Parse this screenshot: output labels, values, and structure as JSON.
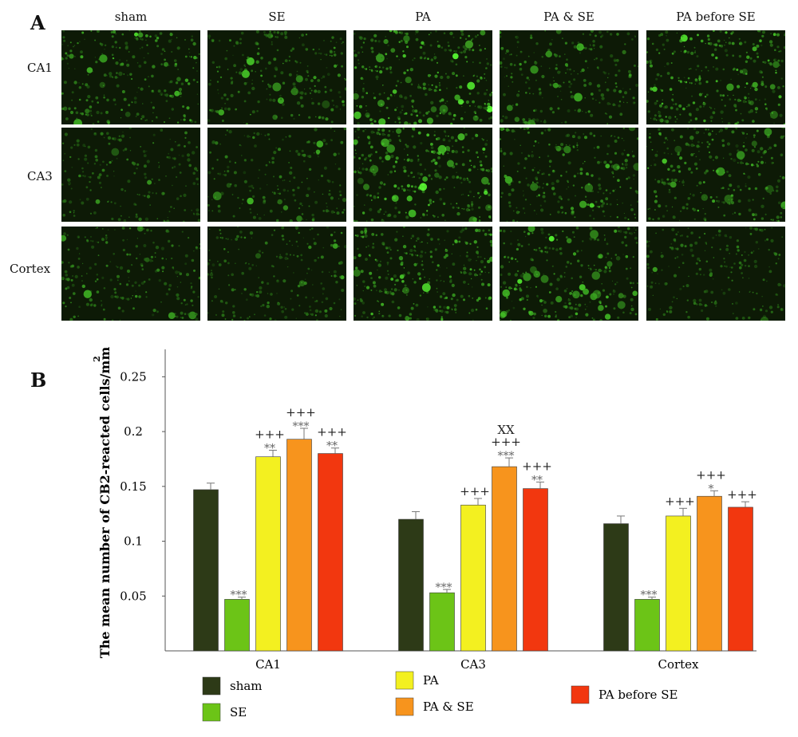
{
  "panel_a": {
    "letter": "A",
    "columns": [
      "sham",
      "SE",
      "PA",
      "PA & SE",
      "PA before SE"
    ],
    "rows": [
      "CA1",
      "CA3",
      "Cortex"
    ]
  },
  "panel_b": {
    "letter": "B",
    "chart_data": {
      "type": "bar",
      "title": "",
      "ylabel": "The mean number of CB2-reacted cells/mm",
      "ylabel_superscript": "2",
      "xlabel": "",
      "ylim": [
        0,
        0.275
      ],
      "yticks": [
        "0.05",
        "0.1",
        "0.15",
        "0.2",
        "0.25"
      ],
      "ytick_values": [
        0.05,
        0.1,
        0.15,
        0.2,
        0.25
      ],
      "categories": [
        "CA1",
        "CA3",
        "Cortex"
      ],
      "series": [
        {
          "name": "sham",
          "color": "#2d3a17",
          "values": [
            0.147,
            0.12,
            0.116
          ],
          "errors": [
            0.006,
            0.007,
            0.007
          ]
        },
        {
          "name": "SE",
          "color": "#6cc417",
          "values": [
            0.047,
            0.053,
            0.047
          ],
          "errors": [
            0.002,
            0.003,
            0.002
          ]
        },
        {
          "name": "PA",
          "color": "#f3f020",
          "values": [
            0.177,
            0.133,
            0.123
          ],
          "errors": [
            0.006,
            0.006,
            0.007
          ]
        },
        {
          "name": "PA & SE",
          "color": "#f7941d",
          "values": [
            0.193,
            0.168,
            0.141
          ],
          "errors": [
            0.01,
            0.008,
            0.005
          ]
        },
        {
          "name": "PA before SE",
          "color": "#f2370f",
          "values": [
            0.18,
            0.148,
            0.131
          ],
          "errors": [
            0.005,
            0.006,
            0.005
          ]
        }
      ],
      "annotations": [
        {
          "series": 1,
          "category": 0,
          "lines": [
            "***"
          ]
        },
        {
          "series": 2,
          "category": 0,
          "lines": [
            "+++",
            "**"
          ]
        },
        {
          "series": 3,
          "category": 0,
          "lines": [
            "+++",
            "***"
          ]
        },
        {
          "series": 4,
          "category": 0,
          "lines": [
            "+++",
            "**"
          ]
        },
        {
          "series": 1,
          "category": 1,
          "lines": [
            "***"
          ]
        },
        {
          "series": 2,
          "category": 1,
          "lines": [
            "+++"
          ]
        },
        {
          "series": 3,
          "category": 1,
          "lines": [
            "XX",
            "+++",
            "***"
          ]
        },
        {
          "series": 4,
          "category": 1,
          "lines": [
            "+++",
            "**"
          ]
        },
        {
          "series": 1,
          "category": 2,
          "lines": [
            "***"
          ]
        },
        {
          "series": 2,
          "category": 2,
          "lines": [
            "+++"
          ]
        },
        {
          "series": 3,
          "category": 2,
          "lines": [
            "+++",
            "*"
          ]
        },
        {
          "series": 4,
          "category": 2,
          "lines": [
            "+++"
          ]
        }
      ],
      "legend": [
        "sham",
        "SE",
        "PA",
        "PA & SE",
        "PA before SE"
      ],
      "legend_placement": "bottom",
      "grid": false
    }
  }
}
